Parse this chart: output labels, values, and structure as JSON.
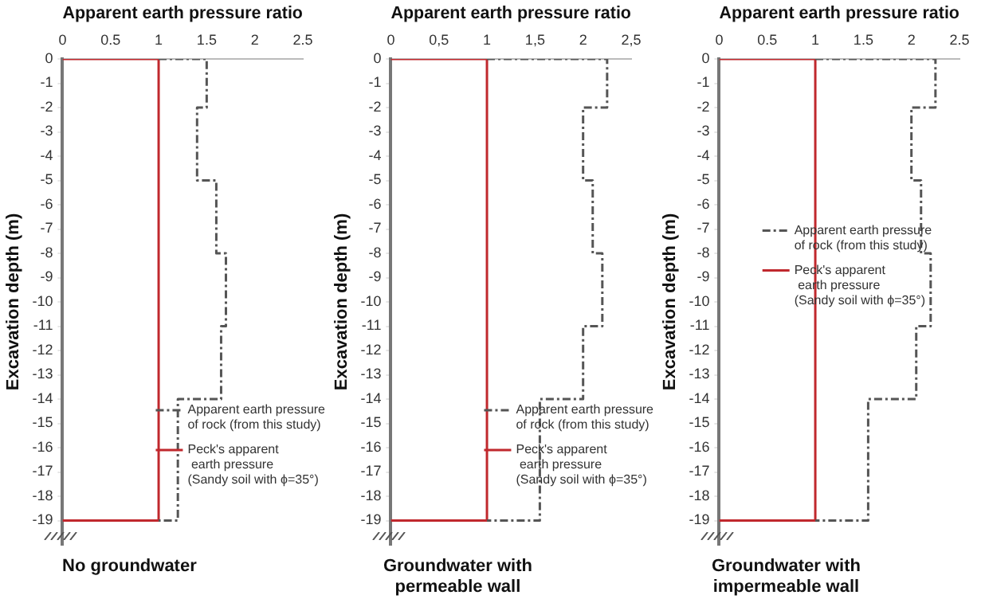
{
  "chart_data": [
    {
      "type": "line",
      "xlabel": "Apparent earth pressure ratio",
      "ylabel": "Excavation depth (m)",
      "xlim": [
        0,
        2.5
      ],
      "xticks": [
        0,
        0.5,
        1,
        1.5,
        2,
        2.5
      ],
      "ylim": [
        -20,
        0
      ],
      "yticks": [
        0,
        -1,
        -2,
        -3,
        -4,
        -5,
        -6,
        -7,
        -8,
        -9,
        -10,
        -11,
        -12,
        -13,
        -14,
        -15,
        -16,
        -17,
        -18,
        -19
      ],
      "grid": false,
      "legend": "bottom right",
      "marker": "none",
      "annotations": [
        "No groundwater"
      ],
      "series": [
        {
          "name": "Apparent earth pressure\nof rock (from this study)",
          "color": "#555555",
          "line_style": "dashed",
          "x": [
            1,
            1.5,
            1.5,
            1.4,
            1.4,
            1.6,
            1.6,
            1.7,
            1.7,
            1.65,
            1.65,
            1.2,
            1.2,
            1
          ],
          "values": [
            0,
            0,
            -2,
            -2,
            -5,
            -5,
            -8,
            -8,
            -11,
            -11,
            -14,
            -14,
            -19,
            -19
          ]
        },
        {
          "name": "Peck's apparent\n earth pressure\n(Sandy soil with ϕ=35°)",
          "color": "#c0282d",
          "line_style": "solid",
          "x": [
            0,
            1,
            1,
            0
          ],
          "values": [
            0,
            0,
            -19,
            -19
          ]
        }
      ]
    },
    {
      "type": "line",
      "xlabel": "Apparent earth pressure ratio",
      "ylabel": "Excavation depth (m)",
      "xlim": [
        0,
        2.5
      ],
      "xticks": [
        0,
        {
          "value": 0.5,
          "label": "0,5"
        },
        1,
        {
          "value": 1.5,
          "label": "1,5"
        },
        2,
        {
          "value": 2.5,
          "label": "2,5"
        }
      ],
      "ylim": [
        -20,
        0
      ],
      "yticks": [
        0,
        -1,
        -2,
        -3,
        -4,
        -5,
        -6,
        -7,
        -8,
        -9,
        -10,
        -11,
        -12,
        -13,
        -14,
        -15,
        -16,
        -17,
        -18,
        -19
      ],
      "grid": false,
      "legend": "bottom right",
      "marker": "none",
      "annotations": [
        "Groundwater with\npermeable wall"
      ],
      "series": [
        {
          "name": "Apparent earth pressure\nof rock (from this study)",
          "color": "#555555",
          "line_style": "dashed",
          "x": [
            1,
            2.25,
            2.25,
            2,
            2,
            2.1,
            2.1,
            2.2,
            2.2,
            2,
            2,
            1.55,
            1.55,
            1
          ],
          "values": [
            0,
            0,
            -2,
            -2,
            -5,
            -5,
            -8,
            -8,
            -11,
            -11,
            -14,
            -14,
            -19,
            -19
          ]
        },
        {
          "name": "Peck's apparent\n earth pressure\n(Sandy soil with ϕ=35°)",
          "color": "#c0282d",
          "line_style": "solid",
          "x": [
            0,
            1,
            1,
            0
          ],
          "values": [
            0,
            0,
            -19,
            -19
          ]
        }
      ]
    },
    {
      "type": "line",
      "xlabel": "Apparent earth pressure ratio",
      "ylabel": "Excavation depth (m)",
      "xlim": [
        0,
        2.5
      ],
      "xticks": [
        0,
        0.5,
        1,
        1.5,
        2,
        2.5
      ],
      "ylim": [
        -20,
        0
      ],
      "yticks": [
        0,
        -1,
        -2,
        -3,
        -4,
        -5,
        -6,
        -7,
        -8,
        -9,
        -10,
        -11,
        -12,
        -13,
        -14,
        -15,
        -16,
        -17,
        -18,
        -19
      ],
      "grid": false,
      "legend": "center",
      "marker": "none",
      "annotations": [
        "Groundwater with\nimpermeable wall"
      ],
      "series": [
        {
          "name": "Apparent earth pressure\nof rock (from this study)",
          "color": "#555555",
          "line_style": "dashed",
          "x": [
            1,
            2.25,
            2.25,
            2,
            2,
            2.1,
            2.1,
            2.2,
            2.2,
            2.05,
            2.05,
            1.55,
            1.55,
            1
          ],
          "values": [
            0,
            0,
            -2,
            -2,
            -5,
            -5,
            -8,
            -8,
            -11,
            -11,
            -14,
            -14,
            -19,
            -19
          ]
        },
        {
          "name": "Peck's apparent\n earth pressure\n(Sandy soil with ϕ=35°)",
          "color": "#c0282d",
          "line_style": "solid",
          "x": [
            0,
            1,
            1,
            0
          ],
          "values": [
            0,
            0,
            -19,
            -19
          ]
        }
      ]
    }
  ]
}
